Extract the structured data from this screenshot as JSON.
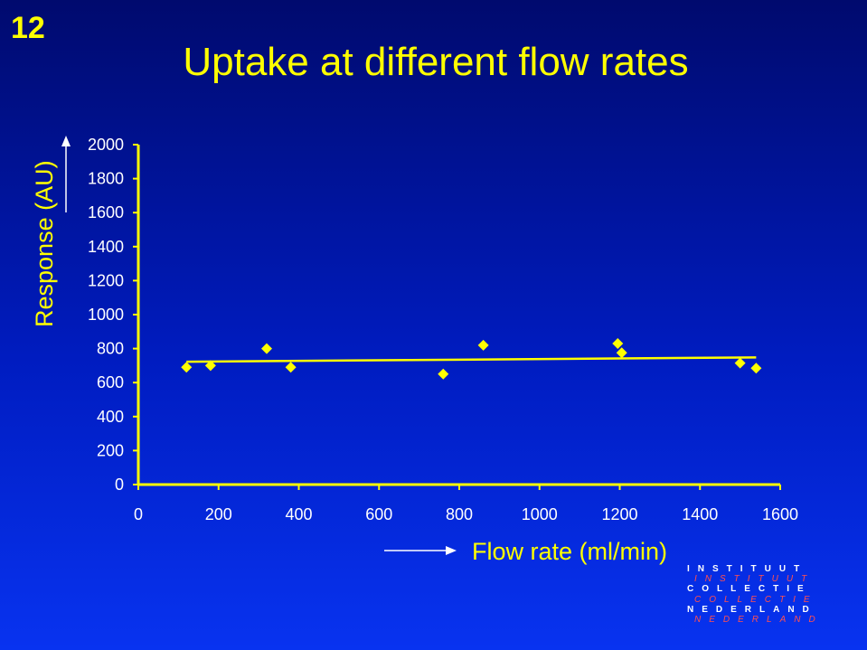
{
  "slide": {
    "number": "12",
    "title": "Uptake at different flow rates"
  },
  "logo": {
    "lines": [
      {
        "text": "INSTITUUT",
        "style": "bold"
      },
      {
        "text": "INSTITUUT",
        "style": "red"
      },
      {
        "text": "COLLECTIE",
        "style": "bold"
      },
      {
        "text": "COLLECTIE",
        "style": "red"
      },
      {
        "text": "NEDERLAND",
        "style": "bold"
      },
      {
        "text": "NEDERLAND",
        "style": "red"
      }
    ]
  },
  "colors": {
    "accent": "#ffff00",
    "text": "#ffffff",
    "logo_red": "#ff5050"
  },
  "chart_data": {
    "type": "scatter",
    "title": "Uptake at different flow rates",
    "xlabel": "Flow rate (ml/min)",
    "ylabel": "Response (AU)",
    "xlim": [
      0,
      1600
    ],
    "ylim": [
      0,
      2000
    ],
    "xticks": [
      0,
      200,
      400,
      600,
      800,
      1000,
      1200,
      1400,
      1600
    ],
    "yticks": [
      0,
      200,
      400,
      600,
      800,
      1000,
      1200,
      1400,
      1600,
      1800,
      2000
    ],
    "grid": false,
    "legend": "none",
    "marker": "diamond",
    "series": [
      {
        "points": [
          {
            "x": 120,
            "y": 690
          },
          {
            "x": 180,
            "y": 700
          },
          {
            "x": 320,
            "y": 800
          },
          {
            "x": 380,
            "y": 690
          },
          {
            "x": 760,
            "y": 650
          },
          {
            "x": 860,
            "y": 820
          },
          {
            "x": 1195,
            "y": 830
          },
          {
            "x": 1205,
            "y": 775
          },
          {
            "x": 1500,
            "y": 715
          },
          {
            "x": 1540,
            "y": 685
          }
        ],
        "trendline": {
          "type": "linear",
          "x": [
            120,
            1540
          ],
          "y": [
            723,
            748
          ]
        }
      }
    ]
  }
}
